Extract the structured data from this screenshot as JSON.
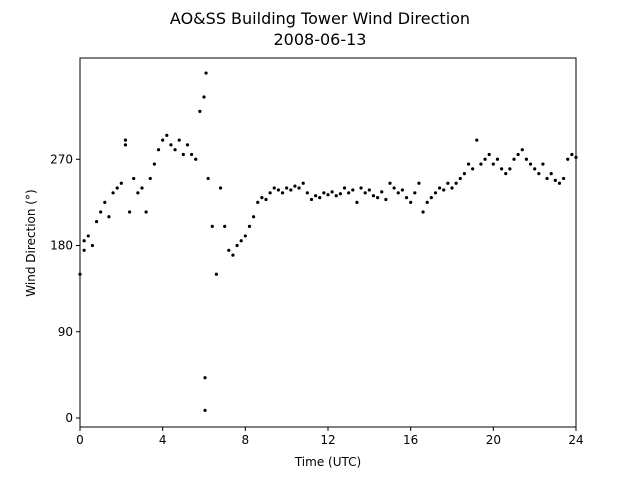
{
  "chart_data": {
    "type": "scatter",
    "title": "AO&SS Building Tower Wind Direction",
    "subtitle": "2008-06-13",
    "x_label": "Time (UTC)",
    "y_label": "Wind Direction (°)",
    "xlim": [
      0,
      24
    ],
    "ylim": [
      -9.4,
      375.7
    ],
    "xticks": [
      0,
      4,
      8,
      12,
      16,
      20,
      24
    ],
    "yticks": [
      0,
      90,
      180,
      270
    ],
    "series": [
      {
        "color": "#000000",
        "x": [
          0.0,
          0.2,
          0.4,
          0.6,
          0.8,
          1.0,
          1.2,
          1.4,
          1.6,
          1.8,
          2.0,
          2.2,
          2.4,
          2.6,
          2.8,
          3.0,
          3.2,
          3.4,
          3.6,
          3.8,
          4.0,
          4.2,
          4.4,
          4.6,
          4.8,
          5.0,
          5.2,
          5.4,
          5.6,
          5.8,
          6.0,
          6.2,
          6.4,
          6.6,
          6.8,
          7.0,
          7.2,
          7.4,
          7.6,
          7.8,
          8.0,
          8.2,
          8.4,
          8.6,
          8.8,
          9.0,
          9.2,
          9.4,
          9.6,
          9.8,
          10.0,
          10.2,
          10.4,
          10.6,
          10.8,
          11.0,
          11.2,
          11.4,
          11.6,
          11.8,
          12.0,
          12.2,
          12.4,
          12.6,
          12.8,
          13.0,
          13.2,
          13.4,
          13.6,
          13.8,
          14.0,
          14.2,
          14.4,
          14.6,
          14.8,
          15.0,
          15.2,
          15.4,
          15.6,
          15.8,
          16.0,
          16.2,
          16.4,
          16.6,
          16.8,
          17.0,
          17.2,
          17.4,
          17.6,
          17.8,
          18.0,
          18.2,
          18.4,
          18.6,
          18.8,
          19.0,
          19.2,
          19.4,
          19.6,
          19.8,
          20.0,
          20.2,
          20.4,
          20.6,
          20.8,
          21.0,
          21.2,
          21.4,
          21.6,
          21.8,
          22.0,
          22.2,
          22.4,
          22.6,
          22.8,
          23.0,
          23.2,
          23.4,
          23.6,
          23.8,
          24.0,
          6.05,
          6.05,
          6.1,
          2.2,
          0.2
        ],
        "values": [
          150,
          175,
          190,
          180,
          205,
          215,
          225,
          210,
          235,
          240,
          245,
          285,
          215,
          250,
          235,
          240,
          215,
          250,
          265,
          280,
          290,
          295,
          285,
          280,
          290,
          275,
          285,
          275,
          270,
          320,
          335,
          250,
          200,
          150,
          240,
          200,
          175,
          170,
          180,
          185,
          190,
          200,
          210,
          225,
          230,
          228,
          235,
          240,
          238,
          235,
          240,
          238,
          242,
          240,
          245,
          235,
          228,
          232,
          230,
          235,
          233,
          236,
          232,
          234,
          240,
          235,
          238,
          225,
          240,
          235,
          238,
          232,
          230,
          236,
          228,
          245,
          240,
          235,
          238,
          230,
          225,
          235,
          245,
          215,
          225,
          230,
          235,
          240,
          238,
          245,
          240,
          245,
          250,
          255,
          265,
          260,
          290,
          265,
          270,
          275,
          265,
          270,
          260,
          255,
          260,
          270,
          275,
          280,
          270,
          265,
          260,
          255,
          265,
          250,
          255,
          248,
          245,
          250,
          270,
          275,
          272,
          42,
          8,
          360,
          290,
          185
        ]
      }
    ]
  }
}
